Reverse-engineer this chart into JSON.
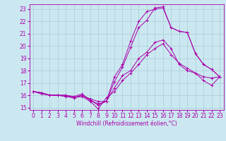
{
  "xlabel": "Windchill (Refroidissement éolien,°C)",
  "bg_color": "#cbe8f0",
  "grid_color": "#a8cdd8",
  "line_color": "#aa00aa",
  "xlim": [
    -0.5,
    23.5
  ],
  "ylim": [
    14.8,
    23.4
  ],
  "yticks": [
    15,
    16,
    17,
    18,
    19,
    20,
    21,
    22,
    23
  ],
  "xticks": [
    0,
    1,
    2,
    3,
    4,
    5,
    6,
    7,
    8,
    9,
    10,
    11,
    12,
    13,
    14,
    15,
    16,
    17,
    18,
    19,
    20,
    21,
    22,
    23
  ],
  "series": [
    [
      16.3,
      16.2,
      16.0,
      16.0,
      15.9,
      15.8,
      15.9,
      15.5,
      14.9,
      15.8,
      16.3,
      17.2,
      17.8,
      18.5,
      19.3,
      19.8,
      20.2,
      19.3,
      18.6,
      18.2,
      17.8,
      17.5,
      17.4,
      17.5
    ],
    [
      16.3,
      16.2,
      16.0,
      16.0,
      15.9,
      15.8,
      16.0,
      15.7,
      15.5,
      15.5,
      16.6,
      17.6,
      18.0,
      19.0,
      19.5,
      20.3,
      20.5,
      19.8,
      18.5,
      18.0,
      17.8,
      17.2,
      16.8,
      17.5
    ],
    [
      16.3,
      16.2,
      16.0,
      16.0,
      16.0,
      15.8,
      16.0,
      15.6,
      15.2,
      15.5,
      17.1,
      18.3,
      19.9,
      21.5,
      22.1,
      23.1,
      23.2,
      21.5,
      21.2,
      21.1,
      19.4,
      18.5,
      18.1,
      17.5
    ],
    [
      16.3,
      16.1,
      16.0,
      16.0,
      16.0,
      15.9,
      16.1,
      15.6,
      15.3,
      15.5,
      17.5,
      18.5,
      20.4,
      22.0,
      22.8,
      23.0,
      23.1,
      21.5,
      21.2,
      21.1,
      19.4,
      18.5,
      18.1,
      17.5
    ]
  ],
  "tick_fontsize": 5.5,
  "xlabel_fontsize": 5.5
}
